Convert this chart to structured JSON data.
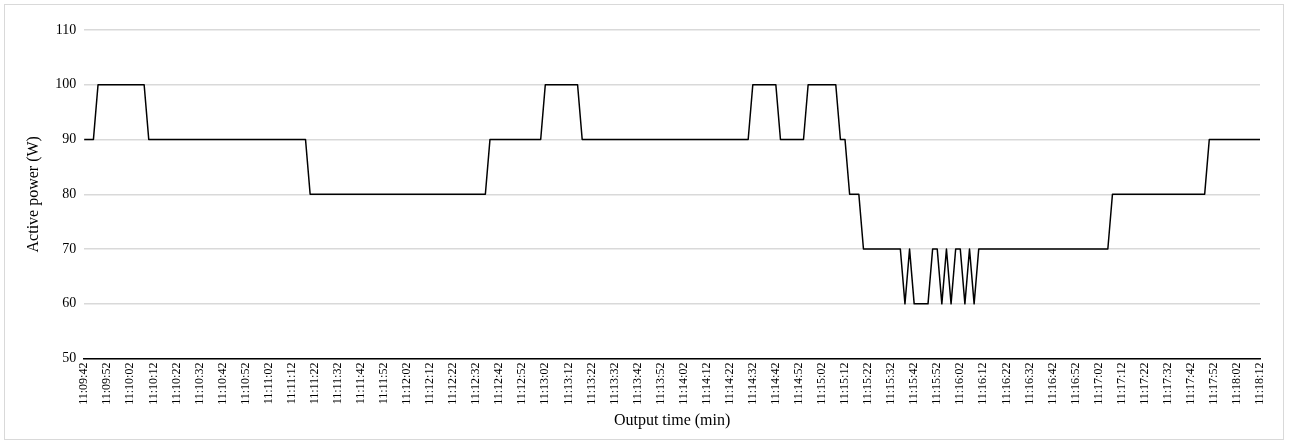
{
  "chart_data": {
    "type": "line",
    "xlabel": "Output time (min)",
    "ylabel": "Active power (W)",
    "categories": [
      "11:09:42",
      null,
      null,
      null,
      null,
      "11:09:52",
      null,
      null,
      null,
      null,
      "11:10:02",
      null,
      null,
      null,
      null,
      "11:10:12",
      null,
      null,
      null,
      null,
      "11:10:22",
      null,
      null,
      null,
      null,
      "11:10:32",
      null,
      null,
      null,
      null,
      "11:10:42",
      null,
      null,
      null,
      null,
      "11:10:52",
      null,
      null,
      null,
      null,
      "11:11:02",
      null,
      null,
      null,
      null,
      "11:11:12",
      null,
      null,
      null,
      null,
      "11:11:22",
      null,
      null,
      null,
      null,
      "11:11:32",
      null,
      null,
      null,
      null,
      "11:11:42",
      null,
      null,
      null,
      null,
      "11:11:52",
      null,
      null,
      null,
      null,
      "11:12:02",
      null,
      null,
      null,
      null,
      "11:12:12",
      null,
      null,
      null,
      null,
      "11:12:22",
      null,
      null,
      null,
      null,
      "11:12:32",
      null,
      null,
      null,
      null,
      "11:12:42",
      null,
      null,
      null,
      null,
      "11:12:52",
      null,
      null,
      null,
      null,
      "11:13:02",
      null,
      null,
      null,
      null,
      "11:13:12",
      null,
      null,
      null,
      null,
      "11:13:22",
      null,
      null,
      null,
      null,
      "11:13:32",
      null,
      null,
      null,
      null,
      "11:13:42",
      null,
      null,
      null,
      null,
      "11:13:52",
      null,
      null,
      null,
      null,
      "11:14:02",
      null,
      null,
      null,
      null,
      "11:14:12",
      null,
      null,
      null,
      null,
      "11:14:22",
      null,
      null,
      null,
      null,
      "11:14:32",
      null,
      null,
      null,
      null,
      "11:14:42",
      null,
      null,
      null,
      null,
      "11:14:52",
      null,
      null,
      null,
      null,
      "11:15:02",
      null,
      null,
      null,
      null,
      "11:15:12",
      null,
      null,
      null,
      null,
      "11:15:22",
      null,
      null,
      null,
      null,
      "11:15:32",
      null,
      null,
      null,
      null,
      "11:15:42",
      null,
      null,
      null,
      null,
      "11:15:52",
      null,
      null,
      null,
      null,
      "11:16:02",
      null,
      null,
      null,
      null,
      "11:16:12",
      null,
      null,
      null,
      null,
      "11:16:22",
      null,
      null,
      null,
      null,
      "11:16:32",
      null,
      null,
      null,
      null,
      "11:16:42",
      null,
      null,
      null,
      null,
      "11:16:52",
      null,
      null,
      null,
      null,
      "11:17:02",
      null,
      null,
      null,
      null,
      "11:17:12",
      null,
      null,
      null,
      null,
      "11:17:22",
      null,
      null,
      null,
      null,
      "11:17:32",
      null,
      null,
      null,
      null,
      "11:17:42",
      null,
      null,
      null,
      null,
      "11:17:52",
      null,
      null,
      null,
      null,
      "11:18:02",
      null,
      null,
      null,
      null,
      "11:18:12"
    ],
    "series": [
      {
        "color": "#000000",
        "values": [
          90,
          90,
          90,
          100,
          100,
          100,
          100,
          100,
          100,
          100,
          100,
          100,
          100,
          100,
          90,
          90,
          90,
          90,
          90,
          90,
          90,
          90,
          90,
          90,
          90,
          90,
          90,
          90,
          90,
          90,
          90,
          90,
          90,
          90,
          90,
          90,
          90,
          90,
          90,
          90,
          90,
          90,
          90,
          90,
          90,
          90,
          90,
          90,
          90,
          80,
          80,
          80,
          80,
          80,
          80,
          80,
          80,
          80,
          80,
          80,
          80,
          80,
          80,
          80,
          80,
          80,
          80,
          80,
          80,
          80,
          80,
          80,
          80,
          80,
          80,
          80,
          80,
          80,
          80,
          80,
          80,
          80,
          80,
          80,
          80,
          80,
          80,
          80,
          90,
          90,
          90,
          90,
          90,
          90,
          90,
          90,
          90,
          90,
          90,
          90,
          100,
          100,
          100,
          100,
          100,
          100,
          100,
          100,
          90,
          90,
          90,
          90,
          90,
          90,
          90,
          90,
          90,
          90,
          90,
          90,
          90,
          90,
          90,
          90,
          90,
          90,
          90,
          90,
          90,
          90,
          90,
          90,
          90,
          90,
          90,
          90,
          90,
          90,
          90,
          90,
          90,
          90,
          90,
          90,
          90,
          100,
          100,
          100,
          100,
          100,
          100,
          90,
          90,
          90,
          90,
          90,
          90,
          100,
          100,
          100,
          100,
          100,
          100,
          100,
          90,
          90,
          80,
          80,
          80,
          70,
          70,
          70,
          70,
          70,
          70,
          70,
          70,
          70,
          60,
          70,
          60,
          60,
          60,
          60,
          70,
          70,
          60,
          70,
          60,
          70,
          70,
          60,
          70,
          60,
          70,
          70,
          70,
          70,
          70,
          70,
          70,
          70,
          70,
          70,
          70,
          70,
          70,
          70,
          70,
          70,
          70,
          70,
          70,
          70,
          70,
          70,
          70,
          70,
          70,
          70,
          70,
          70,
          70,
          80,
          80,
          80,
          80,
          80,
          80,
          80,
          80,
          80,
          80,
          80,
          80,
          80,
          80,
          80,
          80,
          80,
          80,
          80,
          80,
          80,
          90,
          90,
          90,
          90,
          90,
          90,
          90,
          90,
          90,
          90,
          90,
          90
        ]
      }
    ],
    "ylim": [
      50,
      110
    ],
    "yticks": [
      50,
      60,
      70,
      80,
      90,
      100,
      110
    ],
    "grid": "y",
    "legend": false,
    "marker": "none",
    "line_style": "solid"
  }
}
